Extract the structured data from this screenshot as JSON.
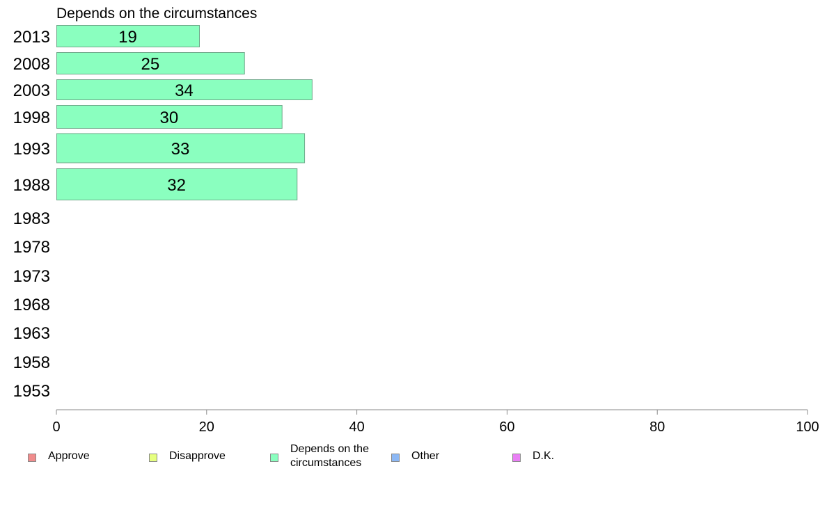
{
  "chart_data": {
    "type": "bar",
    "orientation": "horizontal",
    "title": "Depends on the circumstances",
    "categories": [
      "2013",
      "2008",
      "2003",
      "1998",
      "1993",
      "1988",
      "1983",
      "1978",
      "1973",
      "1968",
      "1963",
      "1958",
      "1953"
    ],
    "series": [
      {
        "name": "Depends on the circumstances",
        "color": "#8affbf",
        "values": [
          19,
          25,
          34,
          30,
          33,
          32,
          null,
          null,
          null,
          null,
          null,
          null,
          null
        ]
      }
    ],
    "xlim": [
      0,
      100
    ],
    "xticks": [
      0,
      20,
      40,
      60,
      80,
      100
    ],
    "grid": false,
    "legend_placement": "bottom"
  },
  "legend": [
    {
      "label": "Approve",
      "color": "#f08c8c"
    },
    {
      "label": "Disapprove",
      "color": "#e6ff80"
    },
    {
      "label": "Depends on the\ncircumstances",
      "color": "#8affbf"
    },
    {
      "label": "Other",
      "color": "#8cb8f5"
    },
    {
      "label": "D.K.",
      "color": "#e97ff5"
    }
  ]
}
